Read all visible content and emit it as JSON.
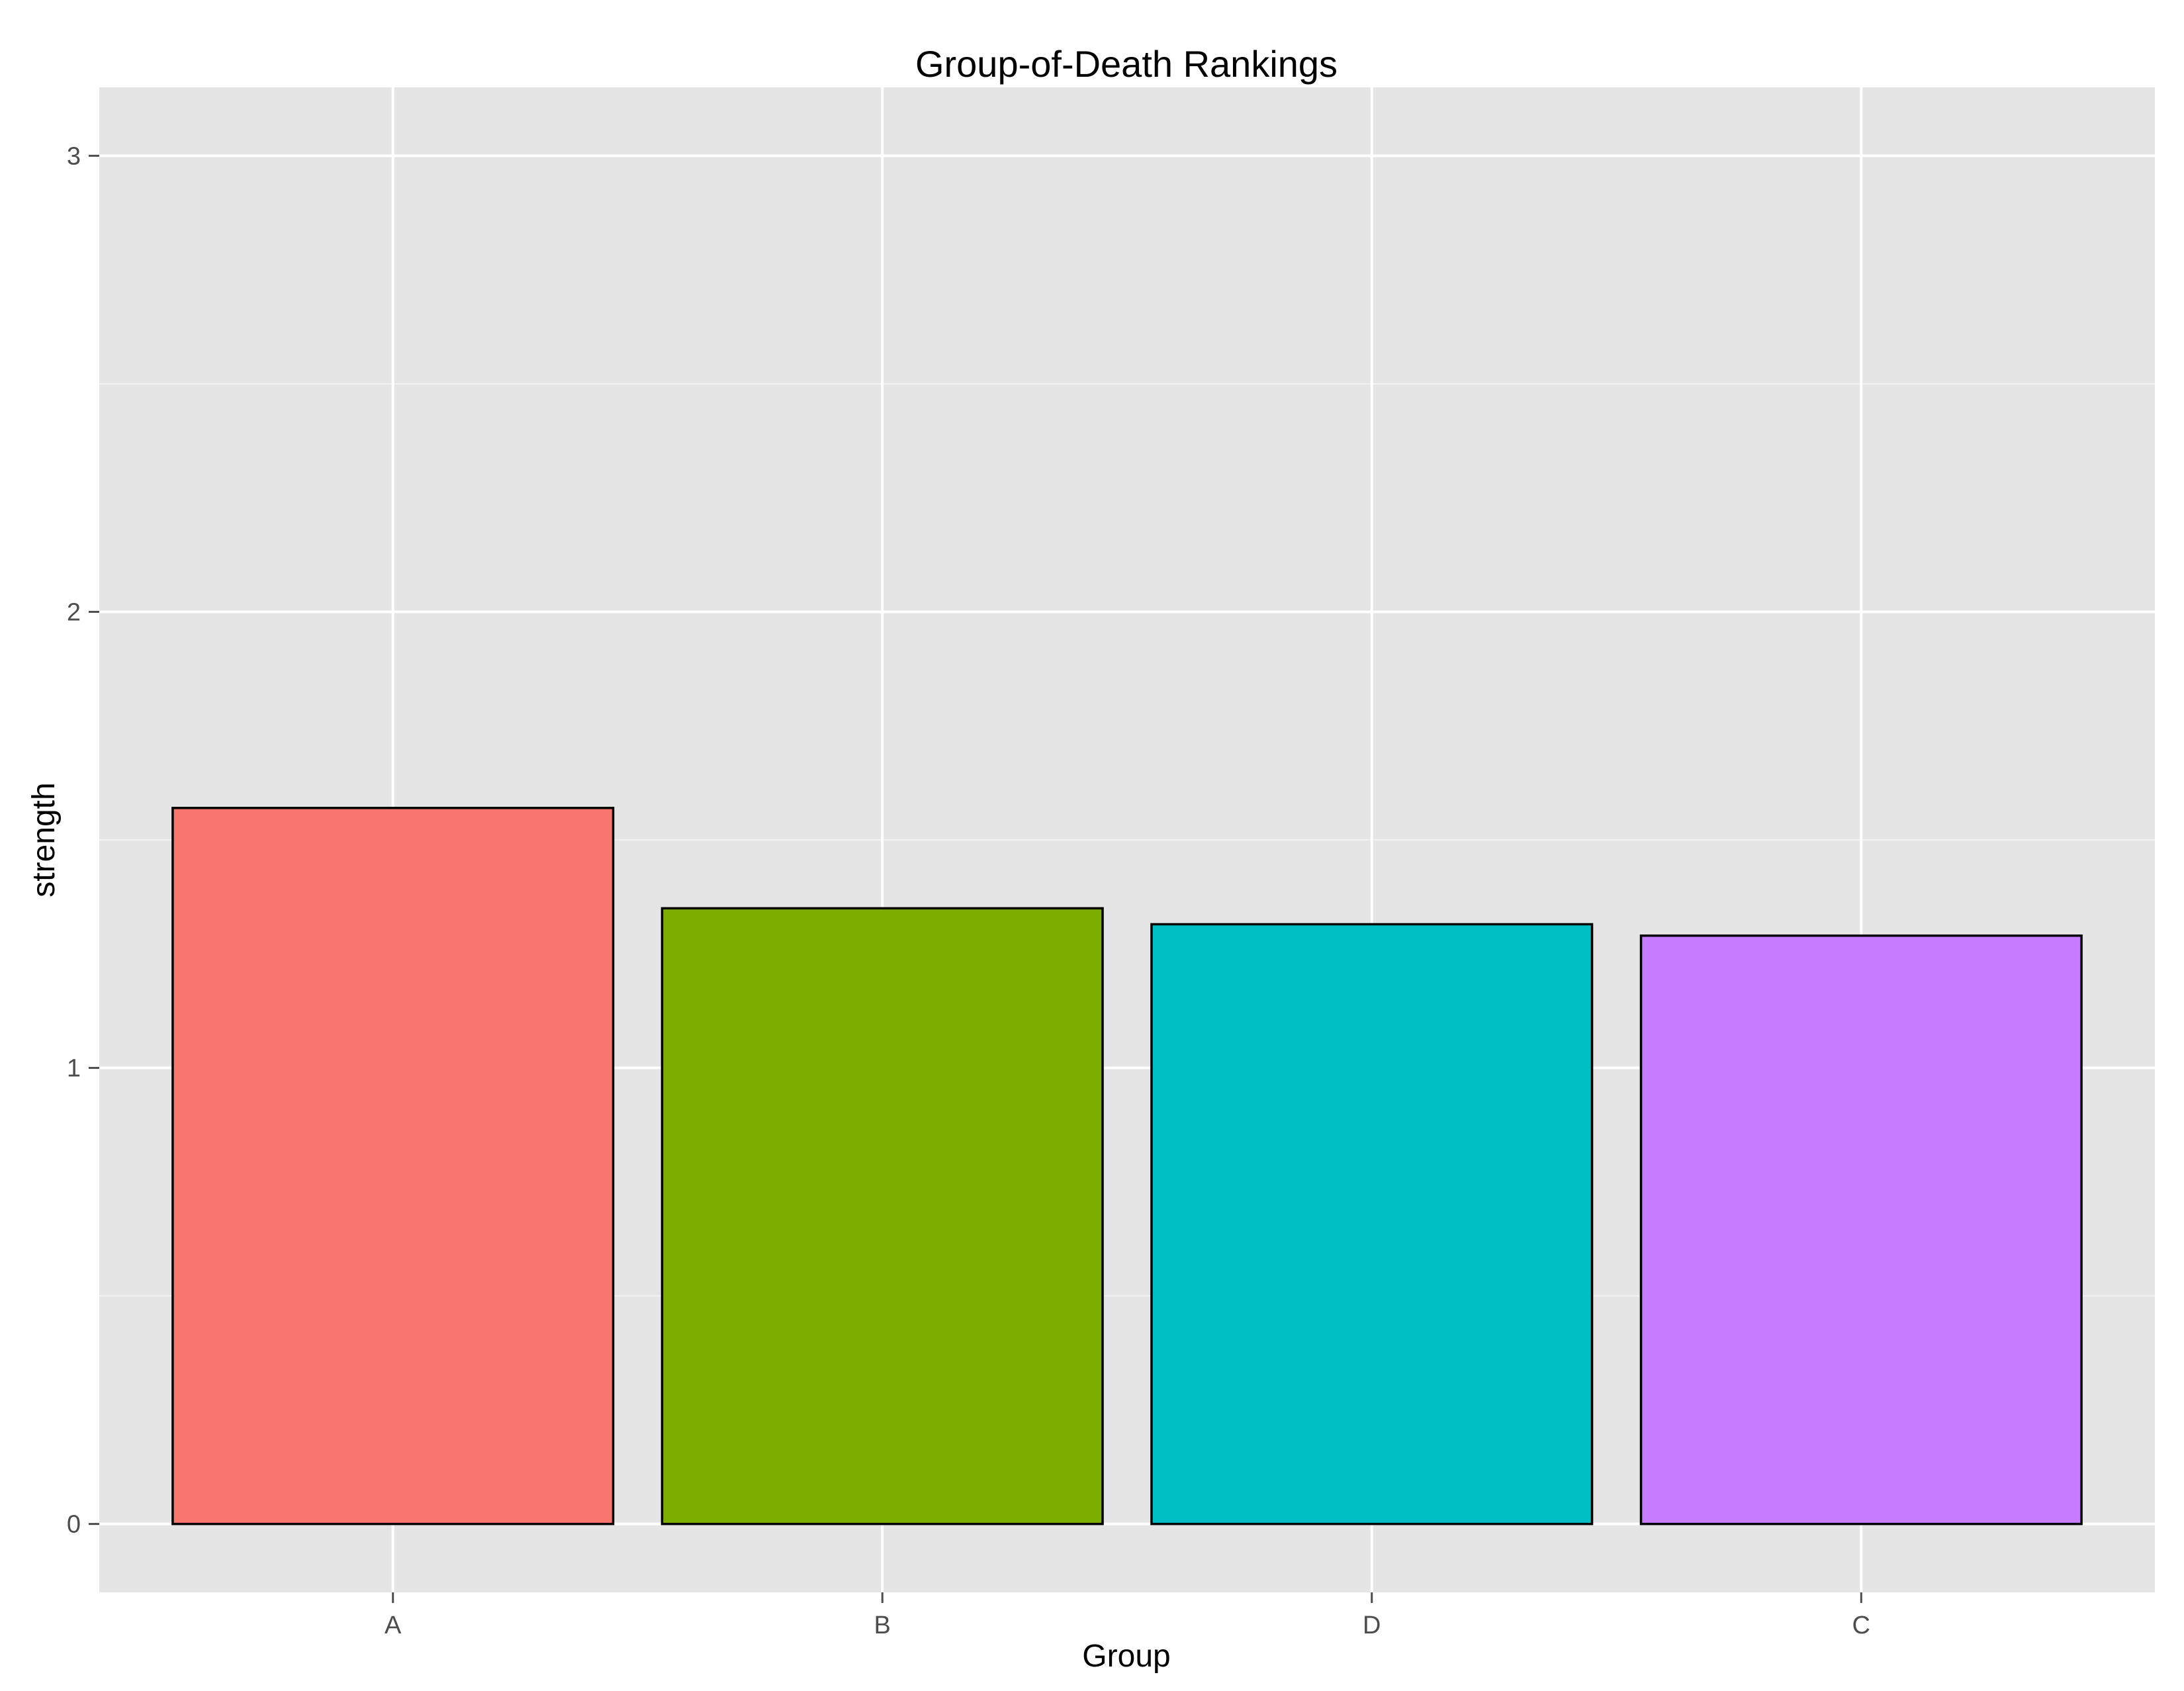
{
  "chart_data": {
    "type": "bar",
    "title": "Group-of-Death Rankings",
    "xlabel": "Group",
    "ylabel": "strength",
    "categories": [
      "A",
      "B",
      "D",
      "C"
    ],
    "values": [
      1.57,
      1.35,
      1.315,
      1.29
    ],
    "colors": [
      "#F8766D",
      "#7CAE00",
      "#00BFC4",
      "#C77CFF"
    ],
    "bar_outline": "#000000",
    "panel_background": "#E5E5E5",
    "grid_color": "#FFFFFF",
    "grid": true,
    "ylim": [
      -0.15,
      3.15
    ],
    "yticks": [
      0,
      1,
      2,
      3
    ],
    "ytick_labels": [
      "0",
      "1",
      "2",
      "3"
    ],
    "legend": "none"
  }
}
